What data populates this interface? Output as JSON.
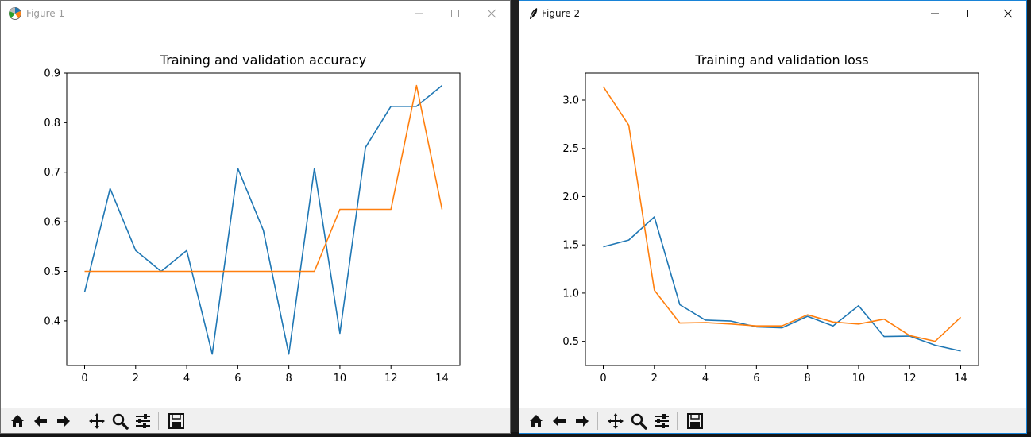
{
  "window1": {
    "title": "Figure 1",
    "app_icon": "matplotlib-icon",
    "controls": [
      "minimize-icon",
      "maximize-icon",
      "close-icon"
    ]
  },
  "window2": {
    "title": "Figure 2",
    "app_icon": "tk-feather-icon",
    "controls": [
      "minimize-icon",
      "maximize-icon",
      "close-icon"
    ]
  },
  "toolbar_buttons": [
    "home-icon",
    "back-arrow-icon",
    "forward-arrow-icon",
    "pan-icon",
    "zoom-icon",
    "configure-subplots-icon",
    "save-icon"
  ],
  "colors": {
    "series1": "#1f77b4",
    "series2": "#ff7f0e",
    "active_border": "#1883d7"
  },
  "chart_data": [
    {
      "type": "line",
      "title": "Training and validation accuracy",
      "xlabel": "",
      "ylabel": "",
      "xlim": [
        -0.7,
        14.7
      ],
      "ylim": [
        0.31,
        0.9
      ],
      "xticks": [
        0,
        2,
        4,
        6,
        8,
        10,
        12,
        14
      ],
      "yticks": [
        0.4,
        0.5,
        0.6,
        0.7,
        0.8,
        0.9
      ],
      "ytick_labels": [
        "0.4",
        "0.5",
        "0.6",
        "0.7",
        "0.8",
        "0.9"
      ],
      "grid": false,
      "x": [
        0,
        1,
        2,
        3,
        4,
        5,
        6,
        7,
        8,
        9,
        10,
        11,
        12,
        13,
        14
      ],
      "series": [
        {
          "color": "#1f77b4",
          "values": [
            0.458,
            0.667,
            0.542,
            0.5,
            0.542,
            0.333,
            0.708,
            0.583,
            0.333,
            0.708,
            0.375,
            0.75,
            0.833,
            0.833,
            0.875
          ]
        },
        {
          "color": "#ff7f0e",
          "values": [
            0.5,
            0.5,
            0.5,
            0.5,
            0.5,
            0.5,
            0.5,
            0.5,
            0.5,
            0.5,
            0.625,
            0.625,
            0.625,
            0.875,
            0.625
          ]
        }
      ]
    },
    {
      "type": "line",
      "title": "Training and validation loss",
      "xlabel": "",
      "ylabel": "",
      "xlim": [
        -0.7,
        14.7
      ],
      "ylim": [
        0.25,
        3.28
      ],
      "xticks": [
        0,
        2,
        4,
        6,
        8,
        10,
        12,
        14
      ],
      "yticks": [
        0.5,
        1.0,
        1.5,
        2.0,
        2.5,
        3.0
      ],
      "ytick_labels": [
        "0.5",
        "1.0",
        "1.5",
        "2.0",
        "2.5",
        "3.0"
      ],
      "grid": false,
      "x": [
        0,
        1,
        2,
        3,
        4,
        5,
        6,
        7,
        8,
        9,
        10,
        11,
        12,
        13,
        14
      ],
      "series": [
        {
          "color": "#1f77b4",
          "values": [
            1.48,
            1.55,
            1.79,
            0.88,
            0.72,
            0.71,
            0.65,
            0.64,
            0.76,
            0.66,
            0.87,
            0.55,
            0.555,
            0.46,
            0.4
          ]
        },
        {
          "color": "#ff7f0e",
          "values": [
            3.14,
            2.74,
            1.03,
            0.69,
            0.695,
            0.68,
            0.66,
            0.66,
            0.775,
            0.7,
            0.68,
            0.73,
            0.56,
            0.5,
            0.75
          ]
        }
      ]
    }
  ]
}
